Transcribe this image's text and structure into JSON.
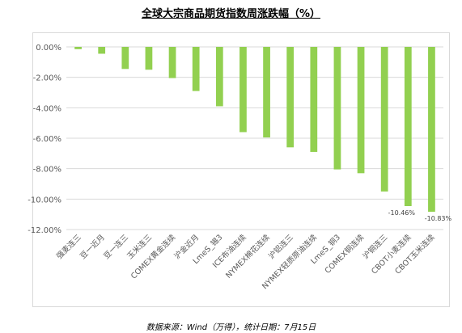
{
  "chart_data": {
    "type": "bar",
    "title": "全球大宗商品期货指数周涨跌幅（%）",
    "categories": [
      "强麦连三",
      "豆一近月",
      "豆一连三",
      "玉米连三",
      "COMEX黄金连续",
      "沪金近月",
      "LmeS_锡3",
      "ICE布油连续",
      "NYMEX棉花连续",
      "沪铝连三",
      "NYMEX轻质原油连续",
      "LmeS_铜3",
      "COMEX铜连续",
      "沪铜连三",
      "CBOT小麦连续",
      "CBOT玉米连续"
    ],
    "values": [
      -0.15,
      -0.45,
      -1.45,
      -1.5,
      -2.05,
      -2.9,
      -3.9,
      -5.6,
      -5.95,
      -6.6,
      -6.9,
      -8.05,
      -8.3,
      -9.5,
      -10.46,
      -10.83
    ],
    "data_labels": [
      null,
      null,
      null,
      null,
      null,
      null,
      null,
      null,
      null,
      null,
      null,
      null,
      null,
      null,
      "-10.46%",
      "-10.83%"
    ],
    "yticks": [
      "0.00%",
      "-2.00%",
      "-4.00%",
      "-6.00%",
      "-8.00%",
      "-10.00%",
      "-12.00%"
    ],
    "ylim": [
      -12,
      0
    ],
    "bar_color": "#92d050",
    "grid": true
  },
  "footer": "数据来源：Wind（万得），统计日期：7月15日"
}
